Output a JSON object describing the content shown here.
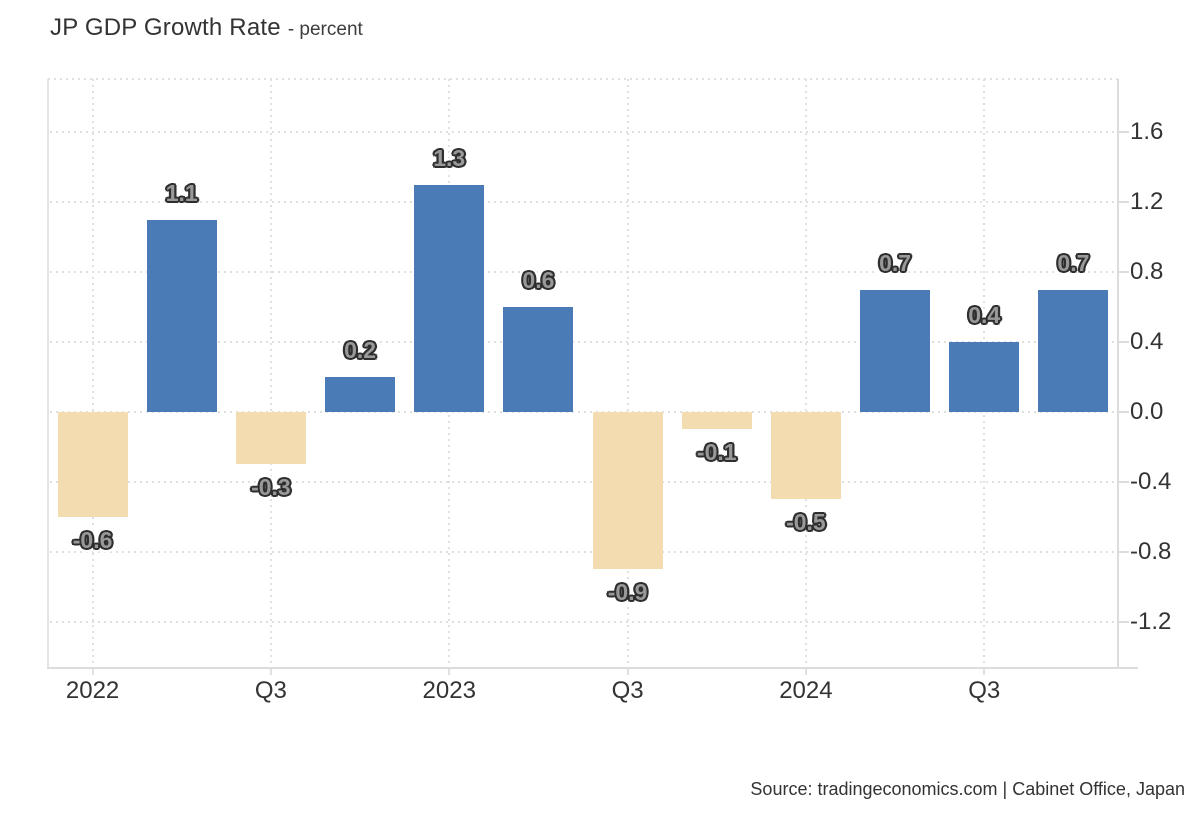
{
  "header": {
    "title": "JP GDP Growth Rate",
    "subtitle": "- percent"
  },
  "footer": {
    "source": "Source: tradingeconomics.com | Cabinet Office, Japan"
  },
  "chart_data": {
    "type": "bar",
    "title": "JP GDP Growth Rate",
    "ylabel": "percent",
    "categories": [
      "2022 Q1",
      "2022 Q2",
      "2022 Q3",
      "2022 Q4",
      "2023 Q1",
      "2023 Q2",
      "2023 Q3",
      "2023 Q4",
      "2024 Q1",
      "2024 Q2",
      "2024 Q3",
      "2024 Q4"
    ],
    "values": [
      -0.6,
      1.1,
      -0.3,
      0.2,
      1.3,
      0.6,
      -0.9,
      -0.1,
      -0.5,
      0.7,
      0.4,
      0.7
    ],
    "bar_labels": [
      "-0.6",
      "1.1",
      "-0.3",
      "0.2",
      "1.3",
      "0.6",
      "-0.9",
      "-0.1",
      "-0.5",
      "0.7",
      "0.4",
      "0.7"
    ],
    "x_ticks": [
      {
        "label": "2022",
        "bar_index": 0
      },
      {
        "label": "Q3",
        "bar_index": 2
      },
      {
        "label": "2023",
        "bar_index": 4
      },
      {
        "label": "Q3",
        "bar_index": 6
      },
      {
        "label": "2024",
        "bar_index": 8
      },
      {
        "label": "Q3",
        "bar_index": 10
      }
    ],
    "y_ticks": [
      "1.6",
      "1.2",
      "0.8",
      "0.4",
      "0.0",
      "-0.4",
      "-0.8",
      "-1.2"
    ],
    "ylim": [
      -1.463,
      1.903
    ],
    "grid": "dotted",
    "legend_position": "none",
    "yaxis_position": "right",
    "colors": {
      "positive_bar": "#4b7bb7",
      "negative_bar": "#f3ddb0",
      "grid_line": "#e0e0e0",
      "axis_line": "#dcdcdc",
      "axis_text": "#333333",
      "bar_label_fill": "#999999",
      "bar_label_outline": "#2e2e2e"
    }
  }
}
